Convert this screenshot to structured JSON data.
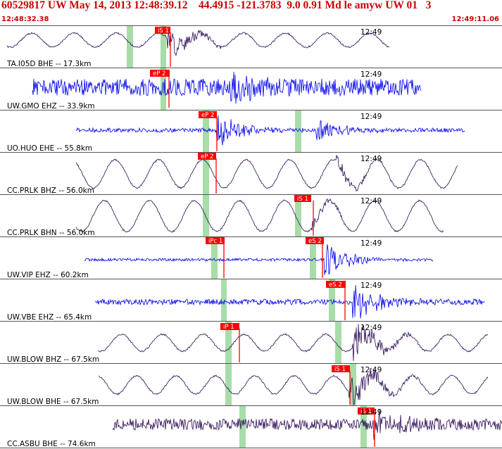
{
  "header": {
    "title": "60529817 UW May 14, 2013 12:48:39.12    44.4915 -121.3783  9.0 0.91 Md le amyw UW 01   3",
    "time_start": "12:48:32.38",
    "time_end": "12:49:11.06"
  },
  "colors": {
    "header_text": "#cc0000",
    "pick_box": "#ff0000",
    "pick_text": "#ffffff",
    "window_band": "#a8dca8",
    "trace_blue": "#0000ee",
    "trace_dark": "#2a0a55",
    "separator": "#555555"
  },
  "traces": [
    {
      "label": "TA.I05D BHE -- 17.3km",
      "time_label": "12:49",
      "picks": [
        {
          "label": "iS 1"
        }
      ],
      "color": "#2a0a55"
    },
    {
      "label": "UW.GMO EHZ -- 33.9km",
      "time_label": "12:49",
      "picks": [
        {
          "label": "eP 2"
        }
      ],
      "color": "#0000ee"
    },
    {
      "label": "UO.HUO EHE -- 55.8km",
      "time_label": "12:49",
      "picks": [
        {
          "label": "eP 2"
        }
      ],
      "color": "#0000ee"
    },
    {
      "label": "CC.PRLK BHZ -- 56.0km",
      "time_label": "12:49",
      "picks": [
        {
          "label": "eP 2"
        }
      ],
      "color": "#2a0a55"
    },
    {
      "label": "CC.PRLK BHN -- 56.0km",
      "time_label": "12:49",
      "picks": [
        {
          "label": "iS 1"
        }
      ],
      "color": "#2a0a55"
    },
    {
      "label": "UW.VIP EHZ -- 60.2km",
      "time_label": "12:49",
      "picks": [
        {
          "label": "iPc 1"
        },
        {
          "label": "eS 2"
        }
      ],
      "color": "#0000ee"
    },
    {
      "label": "UW.VBE EHZ -- 65.4km",
      "time_label": "12:49",
      "picks": [
        {
          "label": "eS 2"
        }
      ],
      "color": "#0000ee"
    },
    {
      "label": "UW.BLOW BHZ -- 67.5km",
      "time_label": "12:49",
      "picks": [
        {
          "label": "iP 1"
        }
      ],
      "color": "#2a0a55"
    },
    {
      "label": "UW.BLOW BHE -- 67.5km",
      "time_label": "12:49",
      "picks": [
        {
          "label": "iS 1"
        }
      ],
      "color": "#2a0a55"
    },
    {
      "label": "CC.ASBU BHE -- 74.6km",
      "time_label": "12:49",
      "picks": [
        {
          "label": "iS 1"
        }
      ],
      "color": "#2a0a55"
    }
  ]
}
